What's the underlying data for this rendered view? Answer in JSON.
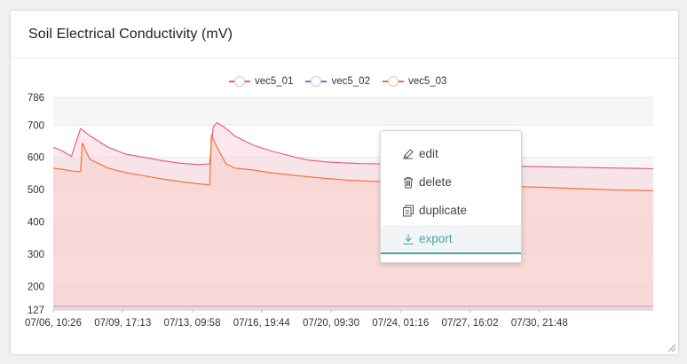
{
  "panel": {
    "title": "Soil Electrical Conductivity (mV)"
  },
  "chart_data": {
    "type": "area",
    "title": "Soil Electrical Conductivity (mV)",
    "legend_position": "top-center",
    "ylim": [
      127,
      786
    ],
    "y_ticks": [
      "786",
      "700",
      "600",
      "500",
      "400",
      "300",
      "200",
      "127"
    ],
    "x_tick_labels": [
      "07/06, 10:26",
      "07/09, 17:13",
      "07/13, 09:58",
      "07/16, 19:44",
      "07/20, 09:30",
      "07/24, 01:16",
      "07/27, 16:02",
      "07/30, 21:48"
    ],
    "series": [
      {
        "name": "vec5_01",
        "color": "#e8557a",
        "x": [
          0,
          0.5,
          1.0,
          1.5,
          2.0,
          3.0,
          4.0,
          5.0,
          6.0,
          7.0,
          8.0,
          8.6,
          8.8,
          9.0,
          9.5,
          10.0,
          11.0,
          12.0,
          13.0,
          14.0,
          15.0,
          16.0,
          17.0,
          18.0,
          19.0,
          20.0,
          21.0,
          22.0,
          23.0,
          24.0,
          25.0,
          26.0,
          27.0,
          28.0,
          29.0,
          30.0,
          31.0,
          32.0,
          32.99
        ],
        "values": [
          632,
          620,
          603,
          690,
          668,
          632,
          610,
          600,
          590,
          582,
          578,
          580,
          695,
          708,
          690,
          666,
          638,
          620,
          605,
          592,
          586,
          583,
          581,
          580,
          579,
          578,
          577,
          576,
          575,
          574,
          573,
          572,
          571,
          570,
          569,
          568,
          567,
          566,
          565
        ]
      },
      {
        "name": "vec5_02",
        "color": "#4a6fd0",
        "x": [
          0,
          32.99
        ],
        "values": [
          138,
          138
        ]
      },
      {
        "name": "vec5_03",
        "color": "#f26b2d",
        "x": [
          0,
          0.5,
          1.0,
          1.5,
          1.6,
          2.0,
          3.0,
          4.0,
          5.0,
          6.0,
          7.0,
          8.0,
          8.6,
          8.7,
          9.0,
          9.5,
          10.0,
          11.0,
          12.0,
          13.0,
          14.0,
          15.0,
          16.0,
          17.0,
          18.0,
          19.0,
          20.0,
          21.0,
          22.0,
          23.0,
          24.0,
          25.0,
          26.0,
          27.0,
          28.0,
          29.0,
          30.0,
          31.0,
          32.0,
          32.99
        ],
        "values": [
          567,
          563,
          558,
          556,
          645,
          595,
          567,
          553,
          543,
          533,
          525,
          518,
          515,
          670,
          632,
          580,
          567,
          561,
          552,
          546,
          540,
          535,
          530,
          527,
          525,
          523,
          521,
          519,
          517,
          515,
          513,
          511,
          509,
          507,
          505,
          503,
          501,
          499,
          498,
          497
        ]
      }
    ]
  },
  "menu": {
    "items": [
      {
        "label": "edit",
        "icon": "pencil-icon"
      },
      {
        "label": "delete",
        "icon": "trash-icon"
      },
      {
        "label": "duplicate",
        "icon": "copy-icon"
      },
      {
        "label": "export",
        "icon": "download-icon"
      }
    ]
  },
  "colors": {
    "accent": "#4aa8a0",
    "area_top": "#f9dcdc"
  }
}
